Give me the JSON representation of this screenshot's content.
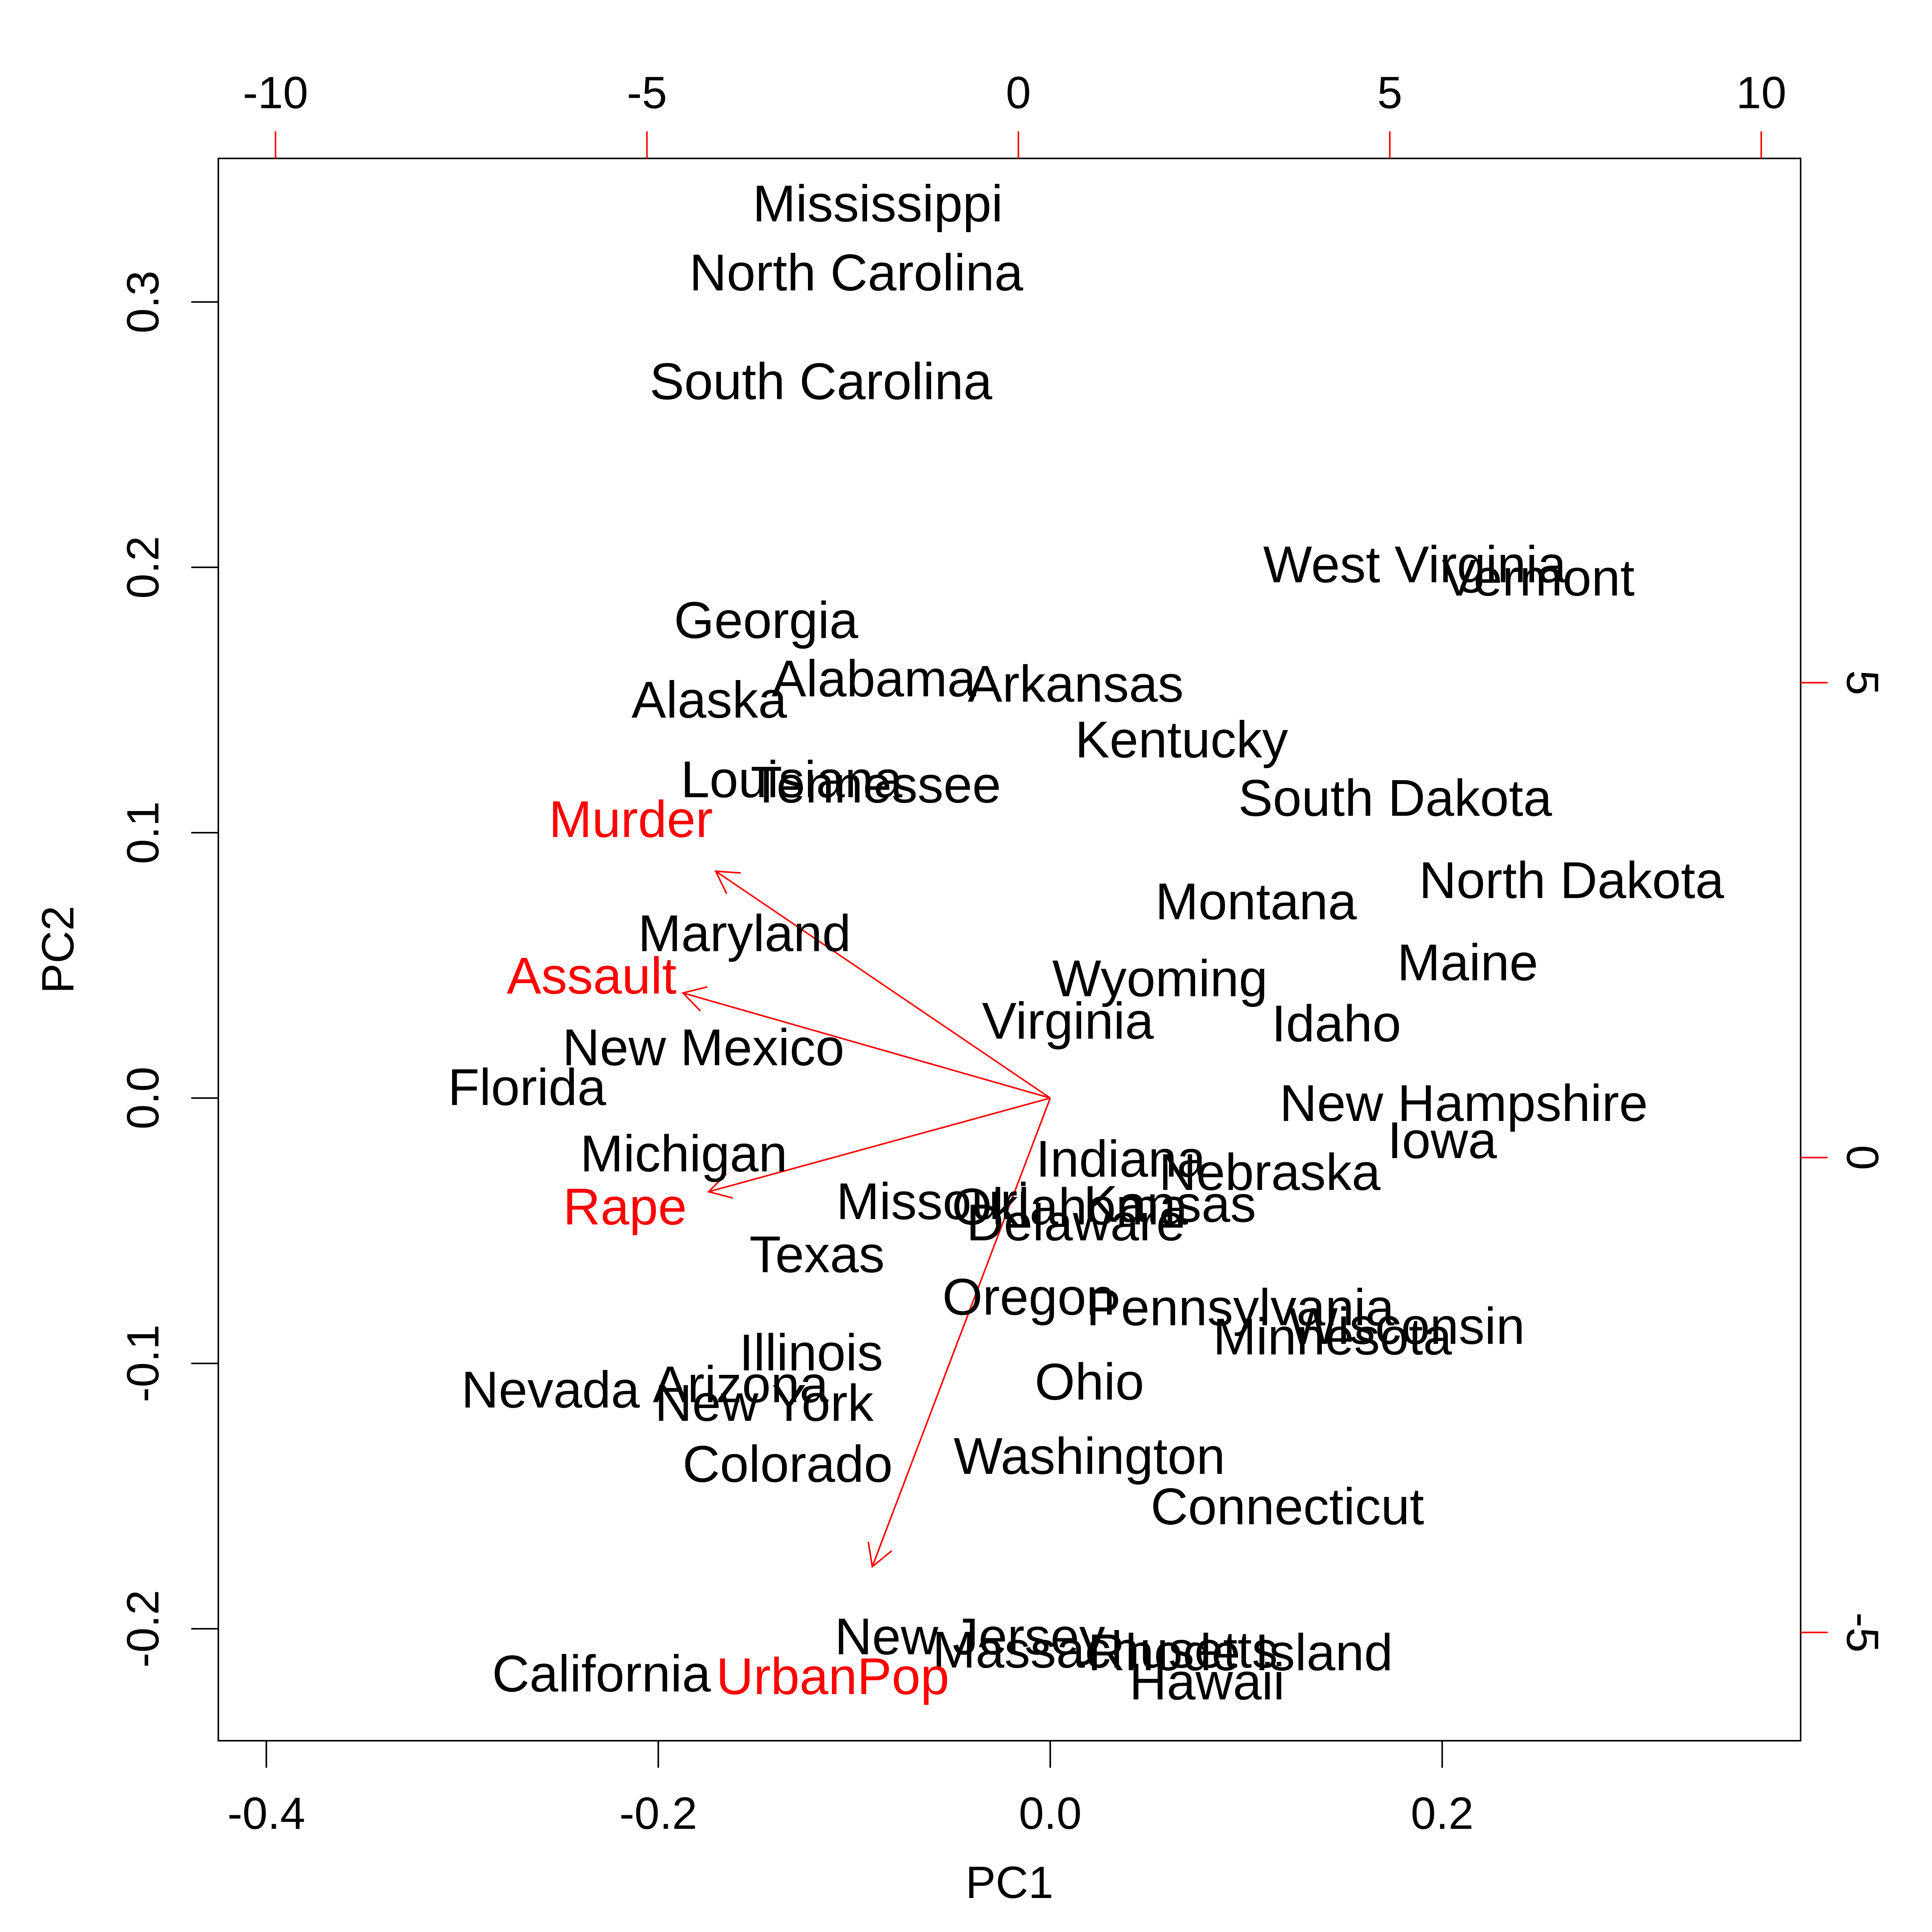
{
  "chart_data": {
    "type": "scatter",
    "title": "",
    "xlabel": "PC1",
    "ylabel": "PC2",
    "xlim": [
      -0.4245,
      0.3829
    ],
    "ylim": [
      -0.2422,
      0.3541
    ],
    "x_ticks": [
      -0.4,
      -0.2,
      0.0,
      0.2
    ],
    "x_tick_labels": [
      "-0.4",
      "-0.2",
      "0.0",
      "0.2"
    ],
    "y_ticks": [
      -0.2,
      -0.1,
      0.0,
      0.1,
      0.2,
      0.3
    ],
    "y_tick_labels": [
      "-0.2",
      "-0.1",
      "0.0",
      "0.1",
      "0.2",
      "0.3"
    ],
    "top_axis": {
      "lim": [
        -10.77,
        10.53
      ],
      "ticks": [
        -10,
        -5,
        0,
        5,
        10
      ],
      "tick_labels": [
        "-10",
        "-5",
        "0",
        "5",
        "10"
      ],
      "color": "#ff0000"
    },
    "right_axis": {
      "lim": [
        -6.14,
        10.52
      ],
      "ticks": [
        -5,
        0,
        5
      ],
      "tick_labels": [
        "-5",
        "0",
        "5"
      ],
      "color": "#ff0000"
    },
    "grid": false,
    "legend": "none",
    "observation_color": "#000000",
    "variable_color": "#ff0000",
    "observations": [
      {
        "label": "Mississippi",
        "x": -0.088,
        "y": 0.337
      },
      {
        "label": "North Carolina",
        "x": -0.099,
        "y": 0.311
      },
      {
        "label": "South Carolina",
        "x": -0.117,
        "y": 0.27
      },
      {
        "label": "West Virginia",
        "x": 0.186,
        "y": 0.201
      },
      {
        "label": "Vermont",
        "x": 0.249,
        "y": 0.196
      },
      {
        "label": "Georgia",
        "x": -0.145,
        "y": 0.18
      },
      {
        "label": "Alabama",
        "x": -0.09,
        "y": 0.158
      },
      {
        "label": "Arkansas",
        "x": 0.013,
        "y": 0.156
      },
      {
        "label": "Alaska",
        "x": -0.174,
        "y": 0.15
      },
      {
        "label": "Kentucky",
        "x": 0.067,
        "y": 0.135
      },
      {
        "label": "Louisiana",
        "x": -0.132,
        "y": 0.12
      },
      {
        "label": "Tennessee",
        "x": -0.089,
        "y": 0.118
      },
      {
        "label": "South Dakota",
        "x": 0.176,
        "y": 0.113
      },
      {
        "label": "North Dakota",
        "x": 0.266,
        "y": 0.082
      },
      {
        "label": "Montana",
        "x": 0.105,
        "y": 0.074
      },
      {
        "label": "Maryland",
        "x": -0.156,
        "y": 0.062
      },
      {
        "label": "Maine",
        "x": 0.213,
        "y": 0.051
      },
      {
        "label": "Wyoming",
        "x": 0.056,
        "y": 0.045
      },
      {
        "label": "Virginia",
        "x": 0.009,
        "y": 0.029
      },
      {
        "label": "Idaho",
        "x": 0.146,
        "y": 0.028
      },
      {
        "label": "New Mexico",
        "x": -0.177,
        "y": 0.019
      },
      {
        "label": "Florida",
        "x": -0.267,
        "y": 0.004
      },
      {
        "label": "New Hampshire",
        "x": 0.211,
        "y": -0.002
      },
      {
        "label": "Iowa",
        "x": 0.2,
        "y": -0.016
      },
      {
        "label": "Michigan",
        "x": -0.187,
        "y": -0.021
      },
      {
        "label": "Indiana",
        "x": 0.036,
        "y": -0.023
      },
      {
        "label": "Nebraska",
        "x": 0.112,
        "y": -0.028
      },
      {
        "label": "Kansas",
        "x": 0.061,
        "y": -0.04
      },
      {
        "label": "Missouri",
        "x": -0.06,
        "y": -0.039
      },
      {
        "label": "Oklahoma",
        "x": 0.01,
        "y": -0.041
      },
      {
        "label": "Delaware",
        "x": 0.013,
        "y": -0.047
      },
      {
        "label": "Texas",
        "x": -0.119,
        "y": -0.059
      },
      {
        "label": "Oregon",
        "x": -0.011,
        "y": -0.075
      },
      {
        "label": "Pennsylvania",
        "x": 0.097,
        "y": -0.079
      },
      {
        "label": "Wisconsin",
        "x": 0.182,
        "y": -0.086
      },
      {
        "label": "Minnesota",
        "x": 0.144,
        "y": -0.09
      },
      {
        "label": "Illinois",
        "x": -0.122,
        "y": -0.096
      },
      {
        "label": "Arizona",
        "x": -0.158,
        "y": -0.108
      },
      {
        "label": "Nevada",
        "x": -0.255,
        "y": -0.11
      },
      {
        "label": "Ohio",
        "x": 0.02,
        "y": -0.107
      },
      {
        "label": "New York",
        "x": -0.146,
        "y": -0.115
      },
      {
        "label": "Colorado",
        "x": -0.134,
        "y": -0.138
      },
      {
        "label": "Washington",
        "x": 0.02,
        "y": -0.135
      },
      {
        "label": "Connecticut",
        "x": 0.121,
        "y": -0.154
      },
      {
        "label": "New Jersey",
        "x": -0.041,
        "y": -0.203
      },
      {
        "label": "Massachusetts",
        "x": 0.028,
        "y": -0.208
      },
      {
        "label": "Rhode Island",
        "x": 0.097,
        "y": -0.209
      },
      {
        "label": "Hawaii",
        "x": 0.08,
        "y": -0.22
      },
      {
        "label": "California",
        "x": -0.229,
        "y": -0.217
      }
    ],
    "variables": [
      {
        "label": "Murder",
        "x": -0.1707,
        "y": 0.0855
      },
      {
        "label": "Assault",
        "x": -0.1874,
        "y": 0.0396
      },
      {
        "label": "UrbanPop",
        "x": -0.0908,
        "y": -0.1766
      },
      {
        "label": "Rape",
        "x": -0.1743,
        "y": -0.0353
      }
    ],
    "variable_labels": [
      {
        "label": "Murder",
        "x": -0.214,
        "y": 0.105
      },
      {
        "label": "Assault",
        "x": -0.234,
        "y": 0.046
      },
      {
        "label": "UrbanPop",
        "x": -0.111,
        "y": -0.218
      },
      {
        "label": "Rape",
        "x": -0.217,
        "y": -0.041
      }
    ]
  }
}
